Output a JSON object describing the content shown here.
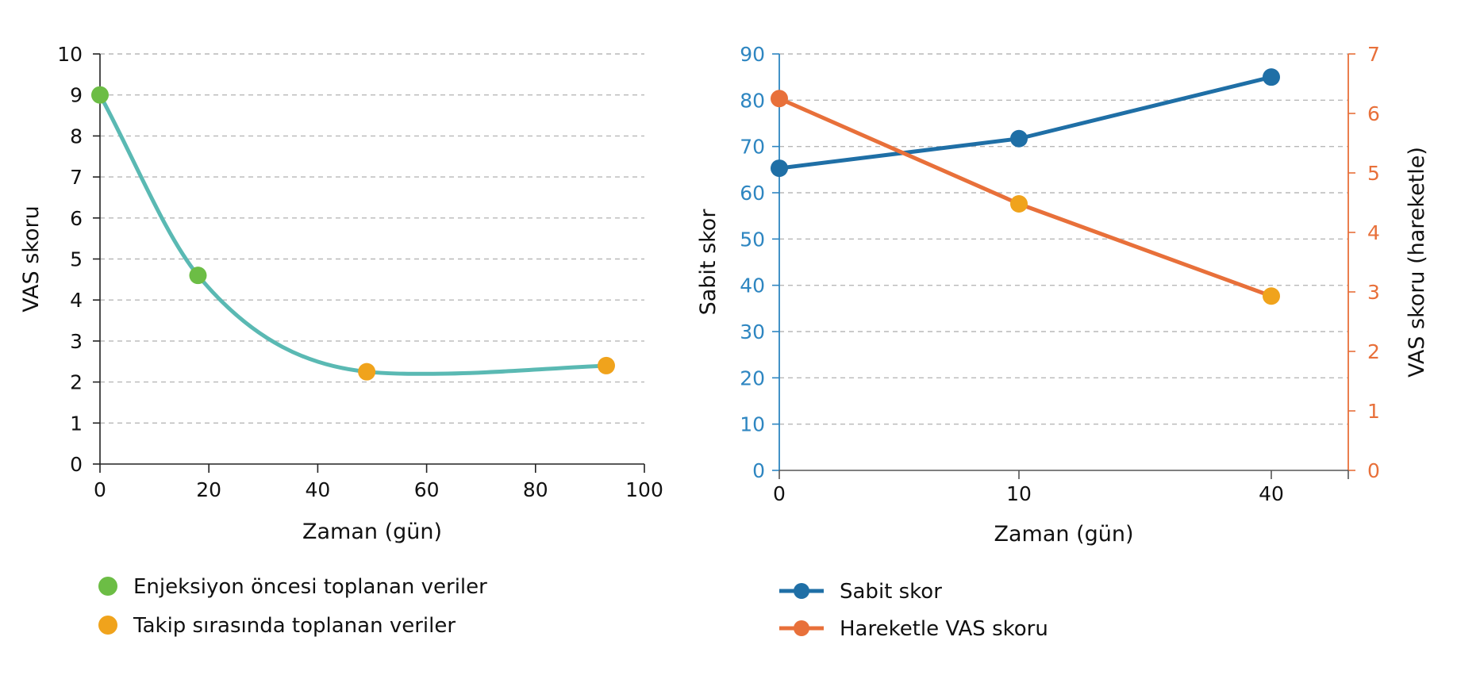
{
  "colors": {
    "green_point": "#6cbd45",
    "orange_point": "#f0a31c",
    "teal_curve": "#5ab9b3",
    "blue": "#1f6fa6",
    "blue_tick": "#2e86c1",
    "orange": "#e8703a",
    "grid": "#b8b8b8"
  },
  "chart_data": [
    {
      "type": "line",
      "xlabel": "Zaman (gün)",
      "ylabel": "VAS skoru",
      "xlim": [
        0,
        100
      ],
      "ylim": [
        0,
        10
      ],
      "x_ticks": [
        "0",
        "20",
        "40",
        "60",
        "80",
        "100"
      ],
      "y_ticks": [
        "0",
        "1",
        "2",
        "3",
        "4",
        "5",
        "6",
        "7",
        "8",
        "9",
        "10"
      ],
      "grid": "horizontal dashed",
      "smooth": true,
      "points": [
        {
          "x": 0,
          "y": 9.0,
          "group": "Enjeksiyon öncesi toplanan veriler"
        },
        {
          "x": 18,
          "y": 4.6,
          "group": "Enjeksiyon öncesi toplanan veriler"
        },
        {
          "x": 49,
          "y": 2.25,
          "group": "Takip sırasında toplanan veriler"
        },
        {
          "x": 93,
          "y": 2.4,
          "group": "Takip sırasında toplanan veriler"
        }
      ],
      "curve": [
        [
          0,
          9.0
        ],
        [
          18,
          4.6
        ],
        [
          49,
          2.25
        ],
        [
          60,
          2.2
        ],
        [
          93,
          2.4
        ]
      ],
      "legend": [
        {
          "label": "Enjeksiyon öncesi toplanan veriler",
          "color": "#6cbd45"
        },
        {
          "label": "Takip sırasında toplanan veriler",
          "color": "#f0a31c"
        }
      ],
      "legend_position": "bottom-left"
    },
    {
      "type": "line",
      "xlabel": "Zaman (gün)",
      "ylabel": "Sabit skor",
      "y2label": "VAS skoru (hareketle)",
      "categories": [
        "0",
        "10",
        "40"
      ],
      "ylim": [
        0,
        90
      ],
      "y2lim": [
        0,
        7
      ],
      "y_ticks": [
        "0",
        "10",
        "20",
        "30",
        "40",
        "50",
        "60",
        "70",
        "80",
        "90"
      ],
      "y2_ticks": [
        "0",
        "1",
        "2",
        "3",
        "4",
        "5",
        "6",
        "7"
      ],
      "grid": "horizontal dashed",
      "series": [
        {
          "name": "Sabit skor",
          "axis": "left",
          "color": "#1f6fa6",
          "values": [
            65.3,
            71.7,
            85.0
          ]
        },
        {
          "name": "Hareketle VAS skoru",
          "axis": "right",
          "color": "#e8703a",
          "values": [
            6.25,
            4.48,
            2.93
          ]
        }
      ],
      "point_colors_right": [
        "#e8703a",
        "#f0a31c",
        "#f0a31c"
      ],
      "legend_position": "bottom-left"
    }
  ]
}
